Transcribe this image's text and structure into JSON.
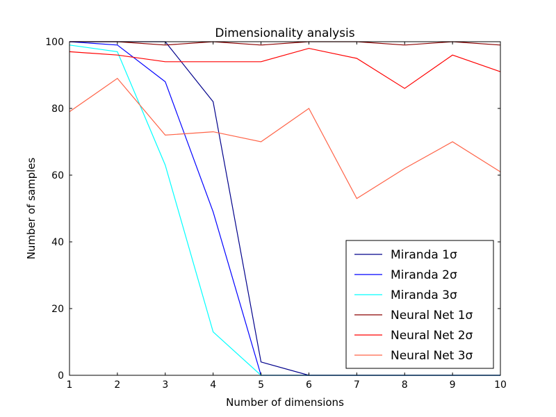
{
  "chart_data": {
    "type": "line",
    "title": "Dimensionality analysis",
    "xlabel": "Number of dimensions",
    "ylabel": "Number of samples",
    "xlim": [
      1,
      10
    ],
    "ylim": [
      0,
      100
    ],
    "xticks": [
      "1",
      "2",
      "3",
      "4",
      "5",
      "6",
      "7",
      "8",
      "9",
      "10"
    ],
    "yticks": [
      "0",
      "20",
      "40",
      "60",
      "80",
      "100"
    ],
    "grid": false,
    "legend_position": "lower-right",
    "x": [
      1,
      2,
      3,
      4,
      5,
      6,
      7,
      8,
      9,
      10
    ],
    "series": [
      {
        "name": "Miranda 1σ",
        "color": "#00008b",
        "values": [
          100,
          100,
          100,
          82,
          4,
          0,
          0,
          0,
          0,
          0
        ]
      },
      {
        "name": "Miranda 2σ",
        "color": "#0000ff",
        "values": [
          100,
          99,
          88,
          49,
          0,
          0,
          0,
          0,
          0,
          0
        ]
      },
      {
        "name": "Miranda 3σ",
        "color": "#00ffff",
        "values": [
          99,
          97,
          63,
          13,
          0,
          0,
          0,
          0,
          0,
          0
        ]
      },
      {
        "name": "Neural Net 1σ",
        "color": "#8b0000",
        "values": [
          100,
          100,
          99,
          100,
          99,
          100,
          100,
          99,
          100,
          99
        ]
      },
      {
        "name": "Neural Net 2σ",
        "color": "#ff0000",
        "values": [
          97,
          96,
          94,
          94,
          94,
          98,
          95,
          86,
          96,
          91
        ]
      },
      {
        "name": "Neural Net 3σ",
        "color": "#ff6347",
        "values": [
          79,
          89,
          72,
          73,
          70,
          80,
          53,
          62,
          70,
          61
        ]
      }
    ]
  }
}
